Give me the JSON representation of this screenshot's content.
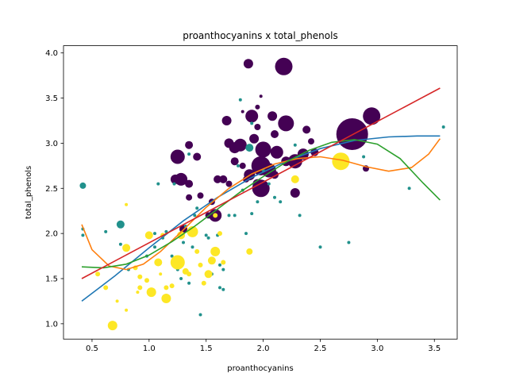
{
  "chart_data": {
    "type": "scatter",
    "title": "proanthocyanins x total_phenols",
    "xlabel": "proanthocyanins",
    "ylabel": "total_phenols",
    "xlim": [
      0.25,
      3.7
    ],
    "ylim": [
      0.83,
      4.08
    ],
    "xticks": [
      "0.5",
      "1.0",
      "1.5",
      "2.0",
      "2.5",
      "3.0",
      "3.5"
    ],
    "yticks": [
      "1.0",
      "1.5",
      "2.0",
      "2.5",
      "3.0",
      "3.5",
      "4.0"
    ],
    "grid": false,
    "colors": {
      "class_0": "#440154",
      "class_1": "#21918c",
      "class_2": "#fde725",
      "fit_1": "#1f77b4",
      "fit_2": "#ff7f0e",
      "fit_3": "#2ca02c",
      "fit_4": "#d62728"
    },
    "series": [
      {
        "class": "class_0",
        "points": [
          [
            1.87,
            3.88,
            6
          ],
          [
            2.18,
            3.85,
            11
          ],
          [
            1.98,
            3.52,
            2
          ],
          [
            1.95,
            3.4,
            3
          ],
          [
            1.82,
            3.35,
            2
          ],
          [
            2.08,
            3.3,
            6
          ],
          [
            2.38,
            3.15,
            5
          ],
          [
            2.2,
            3.22,
            10
          ],
          [
            1.68,
            3.25,
            6
          ],
          [
            1.9,
            3.3,
            8
          ],
          [
            1.95,
            3.18,
            4
          ],
          [
            2.1,
            3.1,
            5
          ],
          [
            1.7,
            3.0,
            6
          ],
          [
            1.75,
            2.95,
            7
          ],
          [
            1.8,
            2.98,
            8
          ],
          [
            1.92,
            3.05,
            6
          ],
          [
            2.0,
            2.93,
            10
          ],
          [
            2.12,
            2.9,
            8
          ],
          [
            2.2,
            2.8,
            6
          ],
          [
            2.28,
            2.8,
            9
          ],
          [
            2.35,
            2.88,
            7
          ],
          [
            2.45,
            2.9,
            5
          ],
          [
            2.42,
            3.02,
            4
          ],
          [
            2.78,
            3.1,
            20
          ],
          [
            2.95,
            3.3,
            11
          ],
          [
            2.9,
            2.72,
            4
          ],
          [
            1.82,
            2.75,
            4
          ],
          [
            1.88,
            2.65,
            7
          ],
          [
            1.98,
            2.75,
            12
          ],
          [
            2.05,
            2.7,
            9
          ],
          [
            1.95,
            2.55,
            6
          ],
          [
            1.98,
            2.5,
            11
          ],
          [
            2.1,
            2.65,
            5
          ],
          [
            2.28,
            2.45,
            6
          ],
          [
            1.25,
            2.85,
            9
          ],
          [
            1.28,
            2.6,
            8
          ],
          [
            1.23,
            2.6,
            6
          ],
          [
            1.35,
            2.55,
            5
          ],
          [
            1.35,
            2.4,
            4
          ],
          [
            1.55,
            2.35,
            4
          ],
          [
            1.45,
            2.42,
            4
          ],
          [
            1.6,
            2.6,
            5
          ],
          [
            1.65,
            2.6,
            5
          ],
          [
            1.7,
            2.55,
            4
          ],
          [
            1.75,
            2.8,
            5
          ],
          [
            1.85,
            2.6,
            4
          ],
          [
            1.42,
            2.85,
            5
          ],
          [
            1.35,
            2.98,
            5
          ],
          [
            1.52,
            2.2,
            4
          ],
          [
            1.58,
            2.2,
            8
          ],
          [
            1.3,
            2.05,
            5
          ]
        ]
      },
      {
        "class": "class_1",
        "points": [
          [
            0.42,
            2.53,
            4
          ],
          [
            0.42,
            2.05,
            2
          ],
          [
            0.42,
            1.98,
            2
          ],
          [
            0.62,
            2.02,
            2
          ],
          [
            0.75,
            2.1,
            5
          ],
          [
            0.75,
            1.88,
            2
          ],
          [
            0.82,
            1.6,
            2
          ],
          [
            0.98,
            1.75,
            2
          ],
          [
            1.05,
            1.85,
            2
          ],
          [
            1.05,
            2.0,
            2
          ],
          [
            1.08,
            2.55,
            2
          ],
          [
            1.12,
            1.95,
            2
          ],
          [
            1.15,
            2.02,
            2
          ],
          [
            1.2,
            1.75,
            2
          ],
          [
            1.22,
            2.55,
            2
          ],
          [
            1.25,
            1.6,
            2
          ],
          [
            1.28,
            1.5,
            2
          ],
          [
            1.3,
            1.9,
            2
          ],
          [
            1.32,
            2.08,
            2
          ],
          [
            1.35,
            1.45,
            2
          ],
          [
            1.38,
            1.85,
            2
          ],
          [
            1.4,
            2.2,
            2
          ],
          [
            1.42,
            2.28,
            2
          ],
          [
            1.45,
            1.1,
            2
          ],
          [
            1.5,
            1.98,
            2
          ],
          [
            1.52,
            1.95,
            2
          ],
          [
            1.55,
            1.55,
            2
          ],
          [
            1.58,
            2.2,
            2
          ],
          [
            1.6,
            1.98,
            2
          ],
          [
            1.62,
            1.65,
            2
          ],
          [
            1.62,
            1.4,
            2
          ],
          [
            1.65,
            1.6,
            2
          ],
          [
            1.7,
            2.2,
            2
          ],
          [
            1.75,
            2.2,
            2
          ],
          [
            1.78,
            2.75,
            2
          ],
          [
            1.82,
            2.48,
            2
          ],
          [
            1.85,
            2.0,
            2
          ],
          [
            1.88,
            2.95,
            5
          ],
          [
            1.9,
            2.22,
            2
          ],
          [
            1.95,
            2.35,
            2
          ],
          [
            2.0,
            2.7,
            2
          ],
          [
            2.05,
            2.55,
            2
          ],
          [
            2.1,
            2.4,
            2
          ],
          [
            2.15,
            2.35,
            2
          ],
          [
            2.28,
            2.98,
            2
          ],
          [
            2.32,
            2.2,
            2
          ],
          [
            2.5,
            1.85,
            2
          ],
          [
            2.75,
            1.9,
            2
          ],
          [
            2.88,
            2.85,
            2
          ],
          [
            3.28,
            2.5,
            2
          ],
          [
            3.58,
            3.18,
            2
          ],
          [
            1.8,
            3.48,
            2
          ],
          [
            1.9,
            3.22,
            2
          ],
          [
            1.35,
            2.88,
            2
          ],
          [
            1.65,
            1.38,
            2
          ]
        ]
      },
      {
        "class": "class_2",
        "points": [
          [
            0.68,
            0.98,
            6
          ],
          [
            0.72,
            1.25,
            2
          ],
          [
            0.8,
            1.15,
            2
          ],
          [
            0.62,
            1.4,
            3
          ],
          [
            0.55,
            1.55,
            3
          ],
          [
            0.8,
            1.84,
            5
          ],
          [
            0.8,
            2.32,
            2
          ],
          [
            0.88,
            1.62,
            3
          ],
          [
            0.92,
            1.4,
            3
          ],
          [
            0.92,
            1.52,
            3
          ],
          [
            0.98,
            1.48,
            3
          ],
          [
            1.0,
            1.98,
            5
          ],
          [
            1.02,
            1.35,
            6
          ],
          [
            1.08,
            1.68,
            5
          ],
          [
            1.12,
            1.98,
            3
          ],
          [
            1.15,
            1.28,
            6
          ],
          [
            1.15,
            1.4,
            3
          ],
          [
            1.2,
            1.42,
            3
          ],
          [
            1.25,
            1.68,
            9
          ],
          [
            1.28,
            1.98,
            5
          ],
          [
            1.32,
            1.58,
            4
          ],
          [
            1.35,
            1.55,
            3
          ],
          [
            1.38,
            2.02,
            7
          ],
          [
            1.42,
            1.8,
            3
          ],
          [
            1.45,
            1.65,
            3
          ],
          [
            1.48,
            1.45,
            3
          ],
          [
            1.52,
            1.55,
            5
          ],
          [
            1.55,
            1.7,
            5
          ],
          [
            1.58,
            1.8,
            6
          ],
          [
            1.62,
            2.0,
            3
          ],
          [
            1.65,
            1.68,
            3
          ],
          [
            1.58,
            2.2,
            3
          ],
          [
            1.88,
            1.8,
            4
          ],
          [
            2.28,
            2.6,
            5
          ],
          [
            2.68,
            2.8,
            11
          ],
          [
            0.9,
            1.35,
            2
          ],
          [
            1.1,
            1.55,
            2
          ]
        ]
      }
    ],
    "fit_lines": [
      {
        "class": "fit_1",
        "x": [
          0.41,
          0.7,
          1.0,
          1.3,
          1.6,
          1.9,
          2.2,
          2.5,
          2.8,
          3.1,
          3.35,
          3.55
        ],
        "y": [
          1.25,
          1.53,
          1.84,
          2.14,
          2.4,
          2.62,
          2.8,
          2.94,
          3.03,
          3.07,
          3.08,
          3.08
        ]
      },
      {
        "class": "fit_2",
        "x": [
          0.41,
          0.5,
          0.65,
          0.8,
          0.95,
          1.1,
          1.3,
          1.5,
          1.7,
          1.9,
          2.1,
          2.3,
          2.5,
          2.7,
          2.9,
          3.1,
          3.3,
          3.45,
          3.55
        ],
        "y": [
          2.1,
          1.82,
          1.64,
          1.6,
          1.66,
          1.8,
          2.04,
          2.29,
          2.5,
          2.66,
          2.77,
          2.83,
          2.85,
          2.81,
          2.74,
          2.69,
          2.73,
          2.88,
          3.05
        ]
      },
      {
        "class": "fit_3",
        "x": [
          0.41,
          0.6,
          0.8,
          1.0,
          1.2,
          1.4,
          1.6,
          1.8,
          2.0,
          2.2,
          2.4,
          2.6,
          2.8,
          3.0,
          3.2,
          3.4,
          3.55
        ],
        "y": [
          1.63,
          1.62,
          1.66,
          1.76,
          1.91,
          2.08,
          2.27,
          2.46,
          2.63,
          2.79,
          2.92,
          3.01,
          3.04,
          2.99,
          2.83,
          2.56,
          2.37
        ]
      },
      {
        "class": "fit_4",
        "x": [
          0.41,
          3.55
        ],
        "y": [
          1.5,
          3.61
        ]
      }
    ]
  }
}
